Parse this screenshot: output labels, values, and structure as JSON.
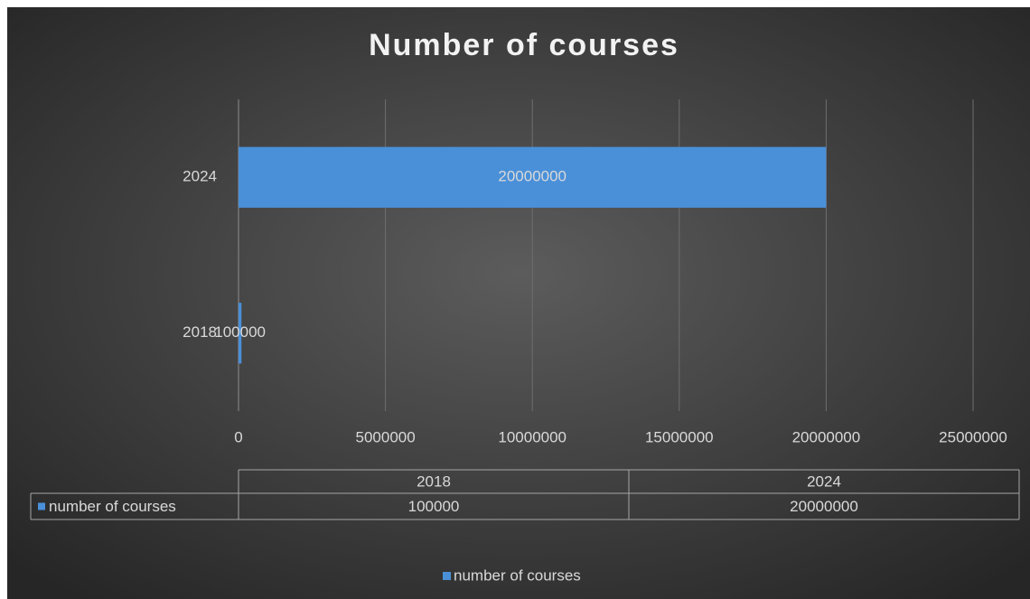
{
  "chart_data": {
    "type": "hbar",
    "title": "Number of courses",
    "categories": [
      "2018",
      "2024"
    ],
    "series": [
      {
        "name": "number of courses",
        "color": "#4a90d9",
        "values": [
          100000,
          20000000
        ]
      }
    ],
    "xlim": [
      0,
      25000000
    ],
    "xticks": [
      0,
      5000000,
      10000000,
      15000000,
      20000000,
      25000000
    ],
    "grid": true,
    "data_table": true,
    "legend": "bottom"
  }
}
